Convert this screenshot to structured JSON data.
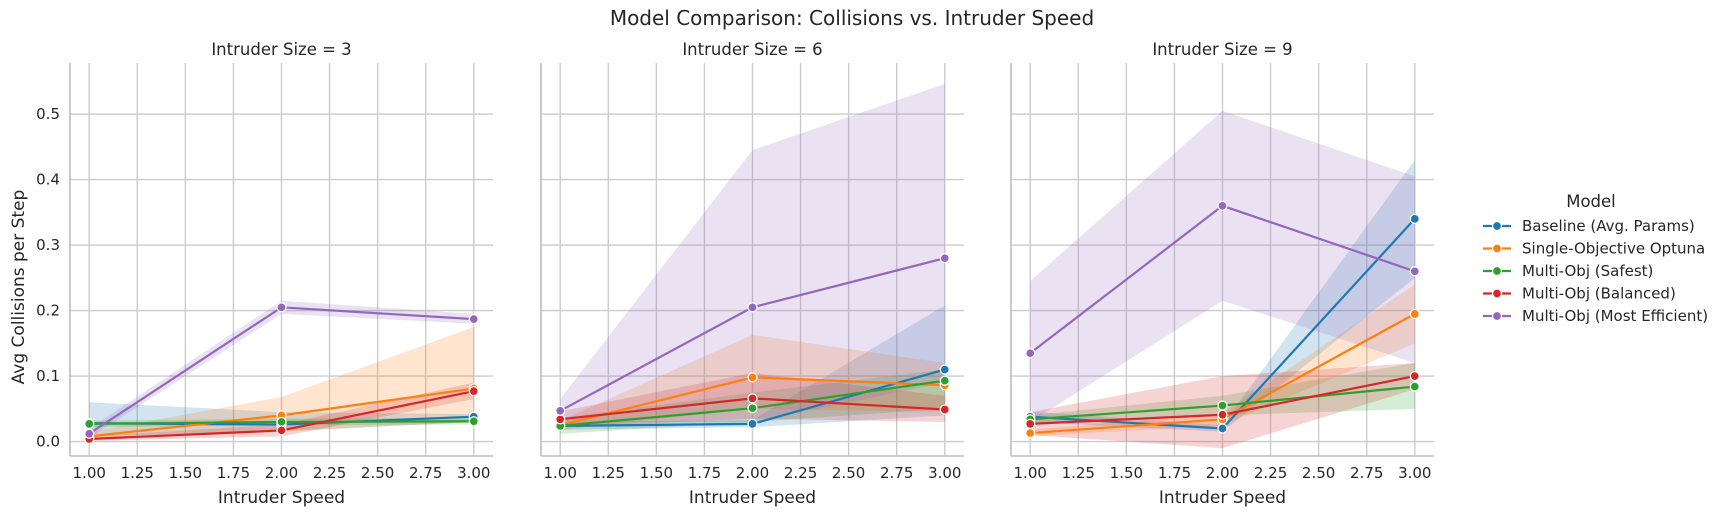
{
  "chart_data": {
    "type": "line",
    "title": "Model Comparison: Collisions vs. Intruder Speed",
    "xlabel": "Intruder Speed",
    "ylabel": "Avg Collisions per Step",
    "xlim": [
      0.9,
      3.1
    ],
    "ylim": [
      -0.022,
      0.578
    ],
    "x_ticks": [
      "1.00",
      "1.25",
      "1.50",
      "1.75",
      "2.00",
      "2.25",
      "2.50",
      "2.75",
      "3.00"
    ],
    "y_ticks": [
      "0.0",
      "0.1",
      "0.2",
      "0.3",
      "0.4",
      "0.5"
    ],
    "grid": true,
    "legend": {
      "title": "Model",
      "placement": "right",
      "entries": [
        "Baseline (Avg. Params)",
        "Single-Objective Optuna",
        "Multi-Obj (Safest)",
        "Multi-Obj (Balanced)",
        "Multi-Obj (Most Efficient)"
      ]
    },
    "colors": [
      "#1f77b4",
      "#ff7f0e",
      "#2ca02c",
      "#d62728",
      "#9467bd"
    ],
    "x": [
      1.0,
      2.0,
      3.0
    ],
    "panels": [
      {
        "title": "Intruder Size = 3",
        "series": [
          {
            "name": "Baseline (Avg. Params)",
            "values": [
              0.028,
              0.026,
              0.038
            ],
            "lower": [
              0.008,
              0.016,
              0.03
            ],
            "upper": [
              0.06,
              0.045,
              0.042
            ]
          },
          {
            "name": "Single-Objective Optuna",
            "values": [
              0.008,
              0.04,
              0.081
            ],
            "lower": [
              0.003,
              0.015,
              0.03
            ],
            "upper": [
              0.015,
              0.068,
              0.175
            ]
          },
          {
            "name": "Multi-Obj (Safest)",
            "values": [
              0.027,
              0.03,
              0.031
            ],
            "lower": [
              0.022,
              0.025,
              0.026
            ],
            "upper": [
              0.032,
              0.035,
              0.036
            ]
          },
          {
            "name": "Multi-Obj (Balanced)",
            "values": [
              0.004,
              0.017,
              0.077
            ],
            "lower": [
              0.001,
              0.008,
              0.065
            ],
            "upper": [
              0.008,
              0.026,
              0.09
            ]
          },
          {
            "name": "Multi-Obj (Most Efficient)",
            "values": [
              0.012,
              0.205,
              0.187
            ],
            "lower": [
              0.005,
              0.195,
              0.18
            ],
            "upper": [
              0.02,
              0.215,
              0.195
            ]
          }
        ]
      },
      {
        "title": "Intruder Size = 6",
        "series": [
          {
            "name": "Baseline (Avg. Params)",
            "values": [
              0.024,
              0.027,
              0.11
            ],
            "lower": [
              0.018,
              0.022,
              0.04
            ],
            "upper": [
              0.03,
              0.033,
              0.208
            ]
          },
          {
            "name": "Single-Objective Optuna",
            "values": [
              0.025,
              0.098,
              0.086
            ],
            "lower": [
              0.018,
              0.05,
              0.045
            ],
            "upper": [
              0.032,
              0.163,
              0.12
            ]
          },
          {
            "name": "Multi-Obj (Safest)",
            "values": [
              0.024,
              0.051,
              0.093
            ],
            "lower": [
              0.012,
              0.03,
              0.05
            ],
            "upper": [
              0.036,
              0.075,
              0.11
            ]
          },
          {
            "name": "Multi-Obj (Balanced)",
            "values": [
              0.034,
              0.066,
              0.049
            ],
            "lower": [
              0.022,
              0.035,
              0.03
            ],
            "upper": [
              0.046,
              0.105,
              0.07
            ]
          },
          {
            "name": "Multi-Obj (Most Efficient)",
            "values": [
              0.047,
              0.205,
              0.28
            ],
            "lower": [
              0.03,
              0.03,
              0.09
            ],
            "upper": [
              0.065,
              0.445,
              0.546
            ]
          }
        ]
      },
      {
        "title": "Intruder Size = 9",
        "series": [
          {
            "name": "Baseline (Avg. Params)",
            "values": [
              0.038,
              0.02,
              0.34
            ],
            "lower": [
              0.03,
              0.015,
              0.25
            ],
            "upper": [
              0.046,
              0.025,
              0.43
            ]
          },
          {
            "name": "Single-Objective Optuna",
            "values": [
              0.013,
              0.034,
              0.195
            ],
            "lower": [
              0.008,
              0.025,
              0.15
            ],
            "upper": [
              0.018,
              0.043,
              0.24
            ]
          },
          {
            "name": "Multi-Obj (Safest)",
            "values": [
              0.034,
              0.055,
              0.084
            ],
            "lower": [
              0.028,
              0.04,
              0.05
            ],
            "upper": [
              0.04,
              0.07,
              0.12
            ]
          },
          {
            "name": "Multi-Obj (Balanced)",
            "values": [
              0.027,
              0.041,
              0.1
            ],
            "lower": [
              0.01,
              -0.01,
              0.08
            ],
            "upper": [
              0.045,
              0.1,
              0.12
            ]
          },
          {
            "name": "Multi-Obj (Most Efficient)",
            "values": [
              0.135,
              0.36,
              0.26
            ],
            "lower": [
              0.03,
              0.215,
              0.12
            ],
            "upper": [
              0.245,
              0.505,
              0.405
            ]
          }
        ]
      }
    ]
  }
}
